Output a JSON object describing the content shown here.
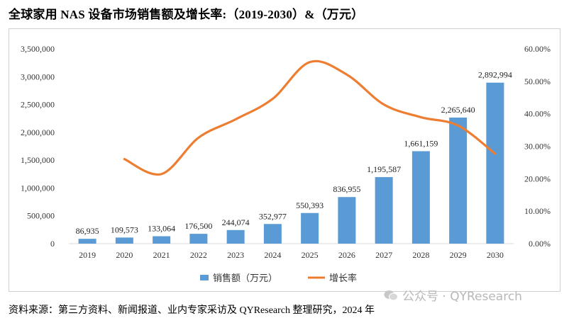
{
  "title": "全球家用 NAS 设备市场销售额及增长率:（2019-2030）&（万元）",
  "source": "资料来源：第三方资料、新闻报道、业内专家采访及 QYResearch 整理研究，2024 年",
  "watermark": "公众号 · QYResearch",
  "colors": {
    "bar": "#5b9bd5",
    "line": "#ed7d31"
  },
  "chart_data": {
    "type": "bar",
    "categories": [
      "2019",
      "2020",
      "2021",
      "2022",
      "2023",
      "2024",
      "2025",
      "2026",
      "2027",
      "2028",
      "2029",
      "2030"
    ],
    "series": [
      {
        "name": "销售额（万元）",
        "type": "bar",
        "axis": "left",
        "values": [
          86935,
          109573,
          133064,
          176500,
          244074,
          352977,
          550393,
          836955,
          1195587,
          1661159,
          2265640,
          2892994
        ],
        "labels": [
          "86,935",
          "109,573",
          "133,064",
          "176,500",
          "244,074",
          "352,977",
          "550,393",
          "836,955",
          "1,195,587",
          "1,661,159",
          "2,265,640",
          "2,892,994"
        ]
      },
      {
        "name": "增长率",
        "type": "line",
        "axis": "right",
        "values": [
          null,
          26.04,
          21.44,
          32.64,
          38.29,
          44.62,
          55.93,
          52.07,
          42.85,
          38.94,
          36.39,
          27.69
        ]
      }
    ],
    "y_left": {
      "min": 0,
      "max": 3500000,
      "ticks": [
        "0",
        "500,000",
        "1,000,000",
        "1,500,000",
        "2,000,000",
        "2,500,000",
        "3,000,000",
        "3,500,000"
      ]
    },
    "y_right": {
      "min": 0,
      "max": 60,
      "ticks": [
        "0.00%",
        "10.00%",
        "20.00%",
        "30.00%",
        "40.00%",
        "50.00%",
        "60.00%"
      ]
    },
    "legend": [
      "销售额（万元）",
      "增长率"
    ],
    "legend_position": "bottom",
    "grid": false
  }
}
